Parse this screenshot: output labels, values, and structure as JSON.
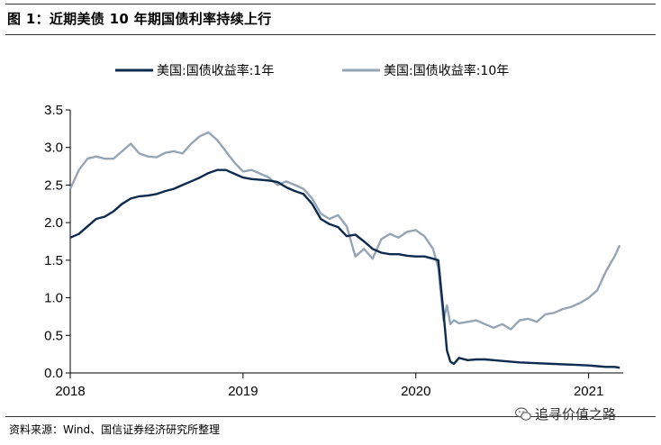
{
  "figure": {
    "title": "图 1：近期美债 10 年期国债利率持续上行",
    "source": "资料来源：Wind、国信证券经济研究所整理",
    "watermark": "追寻价值之路"
  },
  "chart_data": {
    "type": "line",
    "title": "",
    "xlabel": "",
    "ylabel": "",
    "xlim": [
      2018.0,
      2021.2
    ],
    "ylim": [
      0.0,
      3.5
    ],
    "x_ticks": [
      2018,
      2019,
      2020,
      2021
    ],
    "x_tick_labels": [
      "2018",
      "2019",
      "2020",
      "2021"
    ],
    "y_ticks": [
      0.0,
      0.5,
      1.0,
      1.5,
      2.0,
      2.5,
      3.0,
      3.5
    ],
    "y_tick_labels": [
      "0.0",
      "0.5",
      "1.0",
      "1.5",
      "2.0",
      "2.5",
      "3.0",
      "3.5"
    ],
    "grid": false,
    "legend_position": "top",
    "series": [
      {
        "name": "美国:国债收益率:1年",
        "color": "#0d2a4f",
        "x": [
          2018.0,
          2018.05,
          2018.1,
          2018.15,
          2018.2,
          2018.25,
          2018.3,
          2018.35,
          2018.4,
          2018.45,
          2018.5,
          2018.55,
          2018.6,
          2018.65,
          2018.7,
          2018.75,
          2018.8,
          2018.85,
          2018.9,
          2018.95,
          2019.0,
          2019.05,
          2019.1,
          2019.15,
          2019.2,
          2019.25,
          2019.3,
          2019.35,
          2019.4,
          2019.45,
          2019.5,
          2019.55,
          2019.6,
          2019.65,
          2019.7,
          2019.75,
          2019.8,
          2019.85,
          2019.9,
          2019.95,
          2020.0,
          2020.05,
          2020.1,
          2020.13,
          2020.16,
          2020.18,
          2020.2,
          2020.22,
          2020.25,
          2020.3,
          2020.35,
          2020.4,
          2020.45,
          2020.5,
          2020.6,
          2020.7,
          2020.8,
          2020.9,
          2021.0,
          2021.05,
          2021.1,
          2021.15,
          2021.18
        ],
        "y": [
          1.8,
          1.85,
          1.95,
          2.05,
          2.08,
          2.15,
          2.25,
          2.32,
          2.35,
          2.36,
          2.38,
          2.42,
          2.45,
          2.5,
          2.55,
          2.6,
          2.66,
          2.7,
          2.7,
          2.65,
          2.6,
          2.58,
          2.57,
          2.56,
          2.54,
          2.47,
          2.42,
          2.38,
          2.25,
          2.05,
          1.98,
          1.94,
          1.82,
          1.84,
          1.75,
          1.65,
          1.6,
          1.58,
          1.58,
          1.56,
          1.55,
          1.55,
          1.52,
          1.5,
          0.8,
          0.3,
          0.15,
          0.12,
          0.2,
          0.17,
          0.18,
          0.18,
          0.17,
          0.16,
          0.14,
          0.13,
          0.12,
          0.11,
          0.1,
          0.09,
          0.08,
          0.08,
          0.07
        ]
      },
      {
        "name": "美国:国债收益率:10年",
        "color": "#95a5b6",
        "x": [
          2018.0,
          2018.05,
          2018.1,
          2018.15,
          2018.2,
          2018.25,
          2018.3,
          2018.35,
          2018.4,
          2018.45,
          2018.5,
          2018.55,
          2018.6,
          2018.65,
          2018.7,
          2018.75,
          2018.8,
          2018.85,
          2018.9,
          2018.95,
          2019.0,
          2019.05,
          2019.1,
          2019.15,
          2019.2,
          2019.25,
          2019.3,
          2019.35,
          2019.4,
          2019.45,
          2019.5,
          2019.55,
          2019.6,
          2019.65,
          2019.7,
          2019.75,
          2019.8,
          2019.85,
          2019.9,
          2019.95,
          2020.0,
          2020.05,
          2020.1,
          2020.13,
          2020.16,
          2020.18,
          2020.2,
          2020.22,
          2020.25,
          2020.3,
          2020.35,
          2020.4,
          2020.45,
          2020.5,
          2020.55,
          2020.6,
          2020.65,
          2020.7,
          2020.75,
          2020.8,
          2020.85,
          2020.9,
          2020.95,
          2021.0,
          2021.05,
          2021.1,
          2021.15,
          2021.18
        ],
        "y": [
          2.45,
          2.7,
          2.85,
          2.88,
          2.85,
          2.85,
          2.95,
          3.05,
          2.92,
          2.88,
          2.87,
          2.93,
          2.95,
          2.92,
          3.05,
          3.15,
          3.2,
          3.1,
          2.95,
          2.8,
          2.68,
          2.7,
          2.65,
          2.6,
          2.5,
          2.55,
          2.5,
          2.45,
          2.32,
          2.12,
          2.05,
          2.1,
          1.95,
          1.55,
          1.65,
          1.52,
          1.78,
          1.85,
          1.8,
          1.88,
          1.9,
          1.82,
          1.65,
          1.4,
          0.7,
          0.9,
          0.65,
          0.7,
          0.66,
          0.68,
          0.7,
          0.65,
          0.6,
          0.65,
          0.58,
          0.7,
          0.72,
          0.68,
          0.78,
          0.8,
          0.85,
          0.88,
          0.93,
          1.0,
          1.1,
          1.35,
          1.55,
          1.7
        ]
      }
    ]
  }
}
